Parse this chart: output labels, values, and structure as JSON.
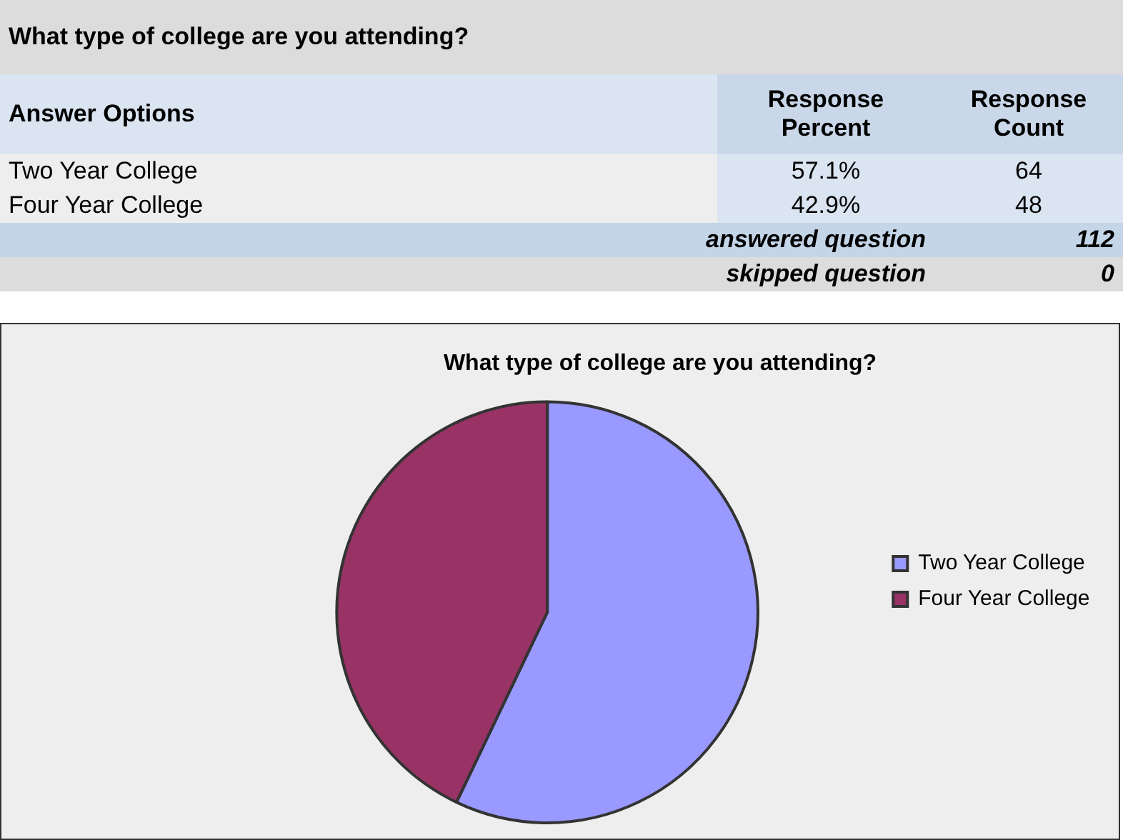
{
  "chart_data": {
    "type": "pie",
    "title": "What type of college are you attending?",
    "categories": [
      "Two Year College",
      "Four Year College"
    ],
    "values": [
      57.1,
      42.9
    ],
    "colors": [
      "#9999ff",
      "#993366"
    ],
    "legend": "right",
    "annotations": [
      "What type of college are you attending?",
      "Answer Options",
      "Response Percent",
      "Response Count",
      "57.1%",
      "42.9%",
      "64",
      "48",
      "answered question",
      "112",
      "skipped question",
      "0"
    ]
  }
}
